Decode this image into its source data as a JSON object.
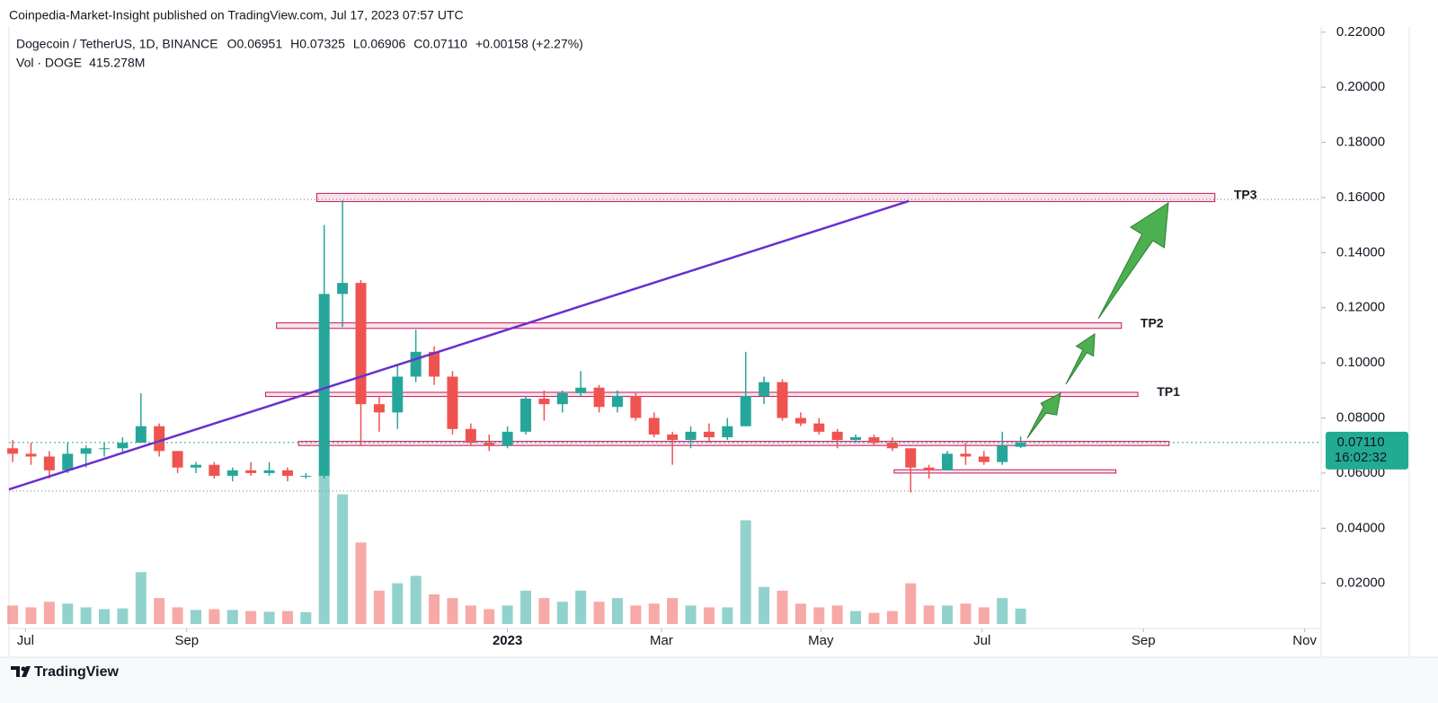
{
  "header": {
    "publisher": "Coinpedia-Market-Insight published on TradingView.com, Jul 17, 2023 07:57 UTC"
  },
  "footer": {
    "brand": "TradingView"
  },
  "chart_data": {
    "type": "candlestick",
    "symbol": "Dogecoin / TetherUS, 1D, BINANCE",
    "legend": [
      {
        "key": "O",
        "value": "0.06951"
      },
      {
        "key": "H",
        "value": "0.07325"
      },
      {
        "key": "L",
        "value": "0.06906"
      },
      {
        "key": "C",
        "value": "0.07110"
      },
      {
        "key": "",
        "value": "+0.00158 (+2.27%)"
      }
    ],
    "volume_label": "Vol · DOGE",
    "volume_value": "415.278M",
    "open": [
      0.069,
      0.067,
      0.066,
      0.061,
      0.067,
      0.069,
      0.069,
      0.071,
      0.077,
      0.068,
      0.062,
      0.063,
      0.059,
      0.061,
      0.06,
      0.061,
      0.059,
      0.059,
      0.125,
      0.129,
      0.085,
      0.082,
      0.095,
      0.104,
      0.095,
      0.076,
      0.071,
      0.07,
      0.075,
      0.087,
      0.085,
      0.089,
      0.091,
      0.084,
      0.088,
      0.08,
      0.074,
      0.072,
      0.075,
      0.073,
      0.077,
      0.088,
      0.093,
      0.08,
      0.078,
      0.075,
      0.072,
      0.073,
      0.071,
      0.069,
      0.062,
      0.061,
      0.067,
      0.066,
      0.064,
      0.06951
    ],
    "high": [
      0.072,
      0.071,
      0.068,
      0.071,
      0.07,
      0.071,
      0.073,
      0.089,
      0.078,
      0.068,
      0.064,
      0.064,
      0.062,
      0.064,
      0.064,
      0.062,
      0.06,
      0.15,
      0.159,
      0.13,
      0.088,
      0.099,
      0.112,
      0.106,
      0.097,
      0.078,
      0.074,
      0.077,
      0.088,
      0.09,
      0.09,
      0.097,
      0.092,
      0.09,
      0.089,
      0.082,
      0.075,
      0.077,
      0.078,
      0.08,
      0.104,
      0.095,
      0.094,
      0.082,
      0.08,
      0.076,
      0.074,
      0.074,
      0.073,
      0.069,
      0.063,
      0.068,
      0.071,
      0.068,
      0.075,
      0.07325
    ],
    "low": [
      0.064,
      0.063,
      0.058,
      0.06,
      0.062,
      0.066,
      0.067,
      0.071,
      0.066,
      0.06,
      0.06,
      0.058,
      0.057,
      0.059,
      0.059,
      0.057,
      0.058,
      0.058,
      0.113,
      0.07,
      0.075,
      0.076,
      0.093,
      0.092,
      0.074,
      0.07,
      0.068,
      0.069,
      0.074,
      0.079,
      0.082,
      0.088,
      0.082,
      0.082,
      0.079,
      0.073,
      0.063,
      0.069,
      0.071,
      0.072,
      0.077,
      0.085,
      0.079,
      0.077,
      0.074,
      0.069,
      0.071,
      0.07,
      0.068,
      0.053,
      0.058,
      0.061,
      0.063,
      0.063,
      0.063,
      0.06906
    ],
    "close": [
      0.067,
      0.066,
      0.061,
      0.067,
      0.069,
      0.069,
      0.071,
      0.077,
      0.068,
      0.062,
      0.063,
      0.059,
      0.061,
      0.06,
      0.061,
      0.059,
      0.059,
      0.125,
      0.129,
      0.085,
      0.082,
      0.095,
      0.104,
      0.095,
      0.076,
      0.071,
      0.07,
      0.075,
      0.087,
      0.085,
      0.089,
      0.091,
      0.084,
      0.088,
      0.08,
      0.074,
      0.072,
      0.075,
      0.073,
      0.077,
      0.088,
      0.093,
      0.08,
      0.078,
      0.075,
      0.072,
      0.073,
      0.071,
      0.069,
      0.062,
      0.061,
      0.067,
      0.066,
      0.064,
      0.07,
      0.0711
    ],
    "volume": [
      500,
      450,
      600,
      550,
      450,
      400,
      420,
      1400,
      700,
      450,
      380,
      400,
      380,
      350,
      330,
      350,
      320,
      4000,
      3500,
      2200,
      900,
      1100,
      1300,
      800,
      700,
      500,
      400,
      500,
      900,
      700,
      600,
      900,
      600,
      700,
      500,
      550,
      700,
      500,
      450,
      450,
      2800,
      1000,
      900,
      550,
      450,
      500,
      350,
      300,
      350,
      1100,
      500,
      500,
      550,
      450,
      700,
      415.278
    ],
    "up_color": "#26a69a",
    "down_color": "#ef5350",
    "ylim": [
      0.0036,
      0.2219
    ],
    "yticks": [
      {
        "value": 0.22,
        "label": "0.22000"
      },
      {
        "value": 0.2,
        "label": "0.20000"
      },
      {
        "value": 0.18,
        "label": "0.18000"
      },
      {
        "value": 0.16,
        "label": "0.16000"
      },
      {
        "value": 0.14,
        "label": "0.14000"
      },
      {
        "value": 0.12,
        "label": "0.12000"
      },
      {
        "value": 0.1,
        "label": "0.10000"
      },
      {
        "value": 0.08,
        "label": "0.08000"
      },
      {
        "value": 0.06,
        "label": "0.06000"
      },
      {
        "value": 0.04,
        "label": "0.04000"
      },
      {
        "value": 0.02,
        "label": "0.02000"
      }
    ],
    "xlim": [
      -0.2,
      71.4
    ],
    "xticks": [
      {
        "value": 0.7,
        "label": "Jul"
      },
      {
        "value": 9.5,
        "label": "Sep"
      },
      {
        "value": 27.0,
        "label": "2023"
      },
      {
        "value": 35.4,
        "label": "Mar"
      },
      {
        "value": 44.1,
        "label": "May"
      },
      {
        "value": 52.9,
        "label": "Jul"
      },
      {
        "value": 61.7,
        "label": "Sep"
      },
      {
        "value": 70.5,
        "label": "Nov"
      }
    ],
    "last_price": {
      "value": 0.0711,
      "label": "0.07110"
    },
    "countdown": "16:02:32",
    "last_color": "#22ab94",
    "levels": [
      0.1593,
      0.0535
    ],
    "zones": [
      {
        "low": 0.1585,
        "high": 0.1615,
        "start": 16.6,
        "end": 65.6,
        "label": "TP3"
      },
      {
        "low": 0.1125,
        "high": 0.1145,
        "start": 14.4,
        "end": 60.5,
        "label": "TP2"
      },
      {
        "low": 0.0878,
        "high": 0.0893,
        "start": 13.8,
        "end": 61.4,
        "label": "TP1"
      },
      {
        "low": 0.07,
        "high": 0.0715,
        "start": 15.6,
        "end": 63.1
      },
      {
        "low": 0.06,
        "high": 0.0612,
        "start": 48.1,
        "end": 60.2
      }
    ],
    "zone_color": "#c2185b",
    "trendline": {
      "x": [
        -0.2,
        48.9
      ],
      "y": [
        0.0541,
        0.1587
      ],
      "color": "#6a2fcf"
    }
  }
}
